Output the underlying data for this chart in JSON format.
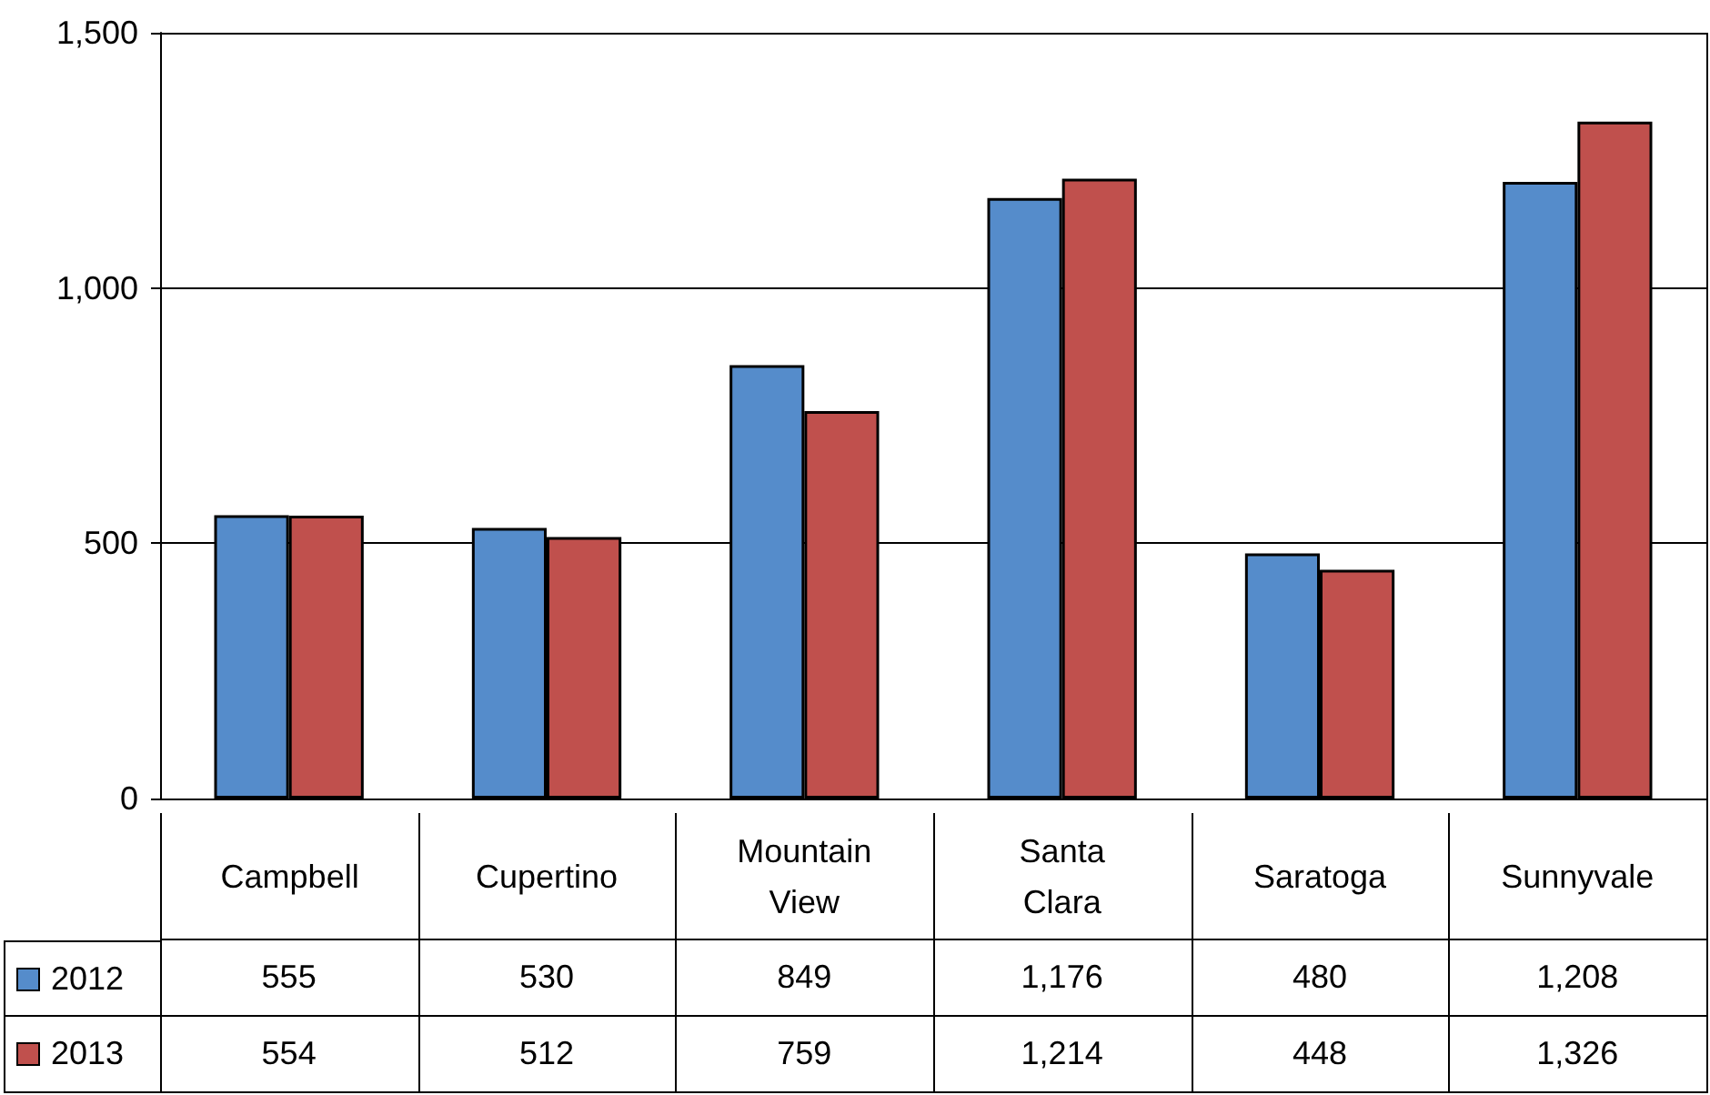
{
  "chart_data": {
    "type": "bar",
    "categories": [
      "Campbell",
      "Cupertino",
      "Mountain View",
      "Santa Clara",
      "Saratoga",
      "Sunnyvale"
    ],
    "series": [
      {
        "name": "2012",
        "color": "#558ccb",
        "values": [
          555,
          530,
          849,
          1176,
          480,
          1208
        ],
        "value_labels": [
          "555",
          "530",
          "849",
          "1,176",
          "480",
          "1,208"
        ]
      },
      {
        "name": "2013",
        "color": "#c0504d",
        "values": [
          554,
          512,
          759,
          1214,
          448,
          1326
        ],
        "value_labels": [
          "554",
          "512",
          "759",
          "1,214",
          "448",
          "1,326"
        ]
      }
    ],
    "ylim": [
      0,
      1500
    ],
    "yticks": [
      {
        "value": 0,
        "label": "0"
      },
      {
        "value": 500,
        "label": "500"
      },
      {
        "value": 1000,
        "label": "1,000"
      },
      {
        "value": 1500,
        "label": "1,500"
      }
    ],
    "grid": "y",
    "legend": "bottom left"
  }
}
